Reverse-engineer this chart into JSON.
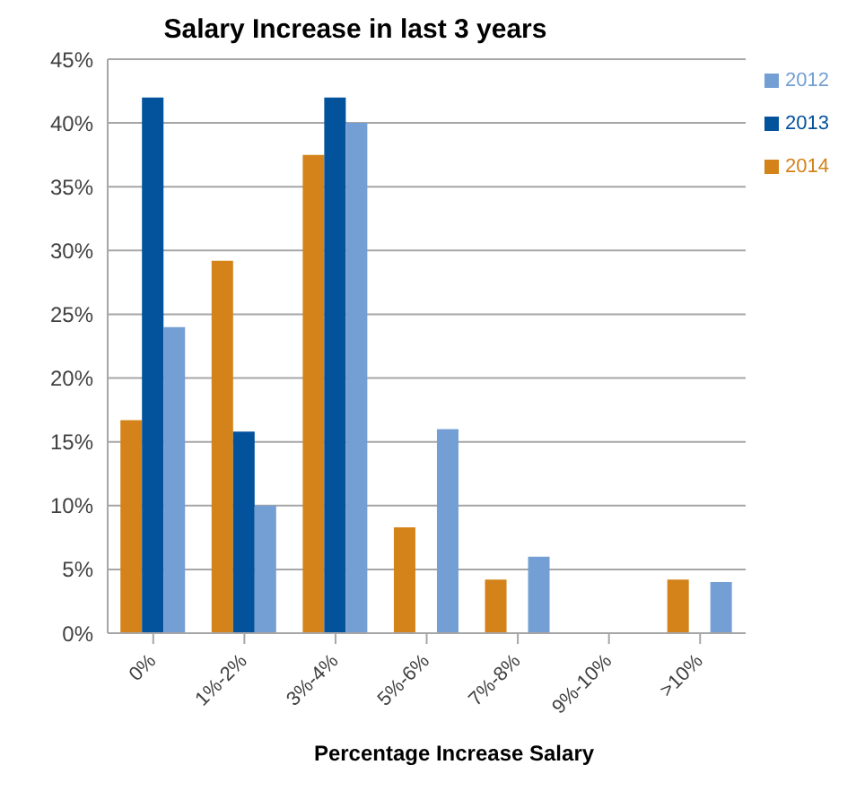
{
  "chart_data": {
    "type": "bar",
    "title": "Salary Increase in last 3 years",
    "xlabel": "Percentage Increase Salary",
    "categories": [
      "0%",
      "1%-2%",
      "3%-4%",
      "5%-6%",
      "7%-8%",
      "9%-10%",
      ">10%"
    ],
    "series": [
      {
        "name": "2014",
        "color": "#d4831a",
        "values": [
          16.7,
          29.2,
          37.5,
          8.3,
          4.2,
          0,
          4.2
        ]
      },
      {
        "name": "2013",
        "color": "#02529c",
        "values": [
          42,
          15.8,
          42,
          0,
          0,
          0,
          0
        ]
      },
      {
        "name": "2012",
        "color": "#739fd4",
        "values": [
          24,
          10,
          40,
          16,
          6,
          0,
          4
        ]
      }
    ],
    "ylim": [
      0,
      45
    ],
    "yticks": [
      {
        "value": 0,
        "label": "0%"
      },
      {
        "value": 5,
        "label": "5%"
      },
      {
        "value": 10,
        "label": "10%"
      },
      {
        "value": 15,
        "label": "15%"
      },
      {
        "value": 20,
        "label": "20%"
      },
      {
        "value": 25,
        "label": "25%"
      },
      {
        "value": 30,
        "label": "30%"
      },
      {
        "value": 35,
        "label": "35%"
      },
      {
        "value": 40,
        "label": "40%"
      },
      {
        "value": 45,
        "label": "45%"
      }
    ],
    "grid": "y",
    "legend": "right"
  }
}
